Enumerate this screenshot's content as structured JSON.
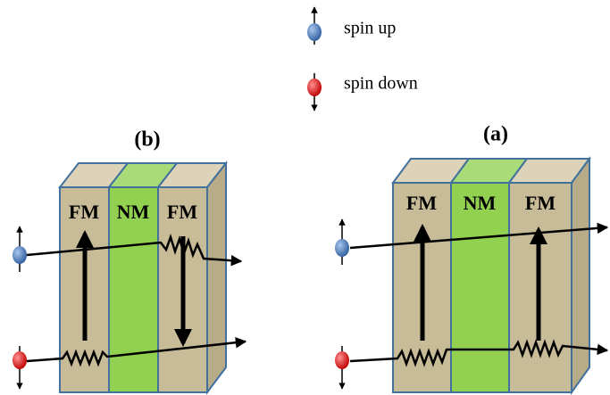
{
  "legend": [
    {
      "label": "spin up"
    },
    {
      "label": "spin down"
    }
  ],
  "panels": [
    {
      "title": "(b)",
      "layers": [
        "FM",
        "NM",
        "FM"
      ]
    },
    {
      "title": "(a)",
      "layers": [
        "FM",
        "NM",
        "FM"
      ]
    }
  ]
}
